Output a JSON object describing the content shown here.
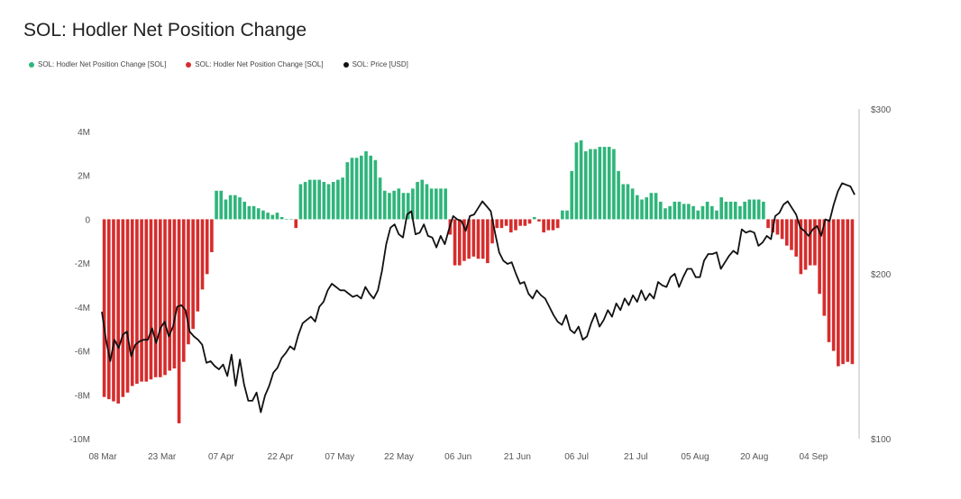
{
  "title": "SOL: Hodler Net Position Change",
  "legend": [
    {
      "label": "SOL: Hodler Net Position Change [SOL]",
      "color": "#2fb57a"
    },
    {
      "label": "SOL: Hodler Net Position Change [SOL]",
      "color": "#d62c2c"
    },
    {
      "label": "SOL: Price [USD]",
      "color": "#111111"
    }
  ],
  "chart_data": {
    "type": "bar",
    "title": "SOL: Hodler Net Position Change",
    "x_ticks": [
      "08 Mar",
      "23 Mar",
      "07 Apr",
      "22 Apr",
      "07 May",
      "22 May",
      "06 Jun",
      "21 Jun",
      "06 Jul",
      "21 Jul",
      "05 Aug",
      "20 Aug",
      "04 Sep"
    ],
    "y_left": {
      "ticks": [
        "4M",
        "2M",
        "0",
        "-2M",
        "-4M",
        "-6M",
        "-8M",
        "-10M"
      ],
      "min": -10,
      "max": 4,
      "unit": "M"
    },
    "y_right": {
      "ticks": [
        "$300",
        "$200",
        "$100"
      ],
      "min": 100,
      "max": 300
    },
    "series": [
      {
        "name": "SOL: Hodler Net Position Change [SOL]",
        "colors": {
          "positive": "#2fb57a",
          "negative": "#d62c2c"
        },
        "values": [
          -8.1,
          -8.2,
          -8.3,
          -8.4,
          -8.1,
          -7.9,
          -7.6,
          -7.5,
          -7.4,
          -7.4,
          -7.3,
          -7.2,
          -7.2,
          -7.1,
          -6.9,
          -6.8,
          -9.3,
          -6.5,
          -5.7,
          -5.0,
          -4.2,
          -3.2,
          -2.5,
          -1.5,
          1.3,
          1.3,
          0.9,
          1.1,
          1.1,
          1.0,
          0.8,
          0.6,
          0.6,
          0.5,
          0.4,
          0.3,
          0.2,
          0.3,
          0.1,
          0.0,
          0.0,
          -0.4,
          1.6,
          1.7,
          1.8,
          1.8,
          1.8,
          1.7,
          1.6,
          1.7,
          1.8,
          1.9,
          2.6,
          2.8,
          2.8,
          2.9,
          3.1,
          2.9,
          2.7,
          1.9,
          1.3,
          1.2,
          1.3,
          1.4,
          1.2,
          1.2,
          1.4,
          1.7,
          1.8,
          1.6,
          1.4,
          1.4,
          1.4,
          1.4,
          -0.7,
          -2.1,
          -2.1,
          -1.9,
          -1.8,
          -1.7,
          -1.8,
          -1.8,
          -2.0,
          -1.1,
          -0.4,
          -0.4,
          -0.3,
          -0.6,
          -0.5,
          -0.3,
          -0.3,
          -0.2,
          0.1,
          -0.1,
          -0.6,
          -0.5,
          -0.5,
          -0.4,
          0.4,
          0.4,
          2.2,
          3.5,
          3.6,
          3.1,
          3.2,
          3.2,
          3.3,
          3.3,
          3.3,
          3.2,
          2.2,
          1.6,
          1.6,
          1.4,
          1.1,
          0.9,
          1.0,
          1.2,
          1.2,
          0.8,
          0.5,
          0.6,
          0.8,
          0.8,
          0.7,
          0.7,
          0.6,
          0.4,
          0.6,
          0.8,
          0.6,
          0.4,
          1.0,
          0.8,
          0.8,
          0.8,
          0.6,
          0.8,
          0.9,
          0.9,
          0.9,
          0.8,
          -0.4,
          -0.6,
          -0.7,
          -0.9,
          -1.2,
          -1.4,
          -1.7,
          -2.5,
          -2.3,
          -2.1,
          -2.1,
          -3.4,
          -4.4,
          -5.6,
          -6.0,
          -6.7,
          -6.6,
          -6.5,
          -6.6
        ]
      },
      {
        "name": "SOL: Price [USD]",
        "axis": "right",
        "color": "#111111",
        "values": [
          177,
          160,
          147,
          160,
          155,
          163,
          165,
          150,
          157,
          159,
          160,
          160,
          167,
          158,
          167,
          171,
          162,
          168,
          180,
          181,
          178,
          165,
          162,
          160,
          157,
          146,
          147,
          144,
          142,
          145,
          138,
          151,
          132,
          148,
          133,
          123,
          123,
          128,
          116,
          126,
          132,
          140,
          143,
          149,
          152,
          156,
          154,
          163,
          170,
          172,
          174,
          171,
          180,
          183,
          190,
          194,
          192,
          190,
          190,
          188,
          186,
          187,
          185,
          192,
          188,
          185,
          190,
          202,
          218,
          228,
          230,
          224,
          222,
          236,
          238,
          224,
          225,
          230,
          223,
          222,
          216,
          223,
          218,
          227,
          235,
          233,
          232,
          226,
          235,
          236,
          240,
          244,
          241,
          238,
          225,
          213,
          208,
          206,
          207,
          200,
          194,
          195,
          188,
          185,
          190,
          187,
          185,
          180,
          175,
          171,
          169,
          175,
          166,
          164,
          168,
          160,
          162,
          170,
          176,
          168,
          172,
          178,
          174,
          182,
          178,
          185,
          181,
          187,
          183,
          190,
          184,
          188,
          185,
          195,
          193,
          192,
          198,
          200,
          192,
          198,
          203,
          203,
          198,
          198,
          208,
          212,
          212,
          213,
          203,
          207,
          211,
          214,
          212,
          227,
          225,
          226,
          225,
          217,
          219,
          223,
          221,
          235,
          237,
          242,
          244,
          240,
          236,
          228,
          226,
          223,
          227,
          229,
          223,
          233,
          232,
          242,
          250,
          255,
          254,
          253,
          248
        ]
      }
    ]
  }
}
